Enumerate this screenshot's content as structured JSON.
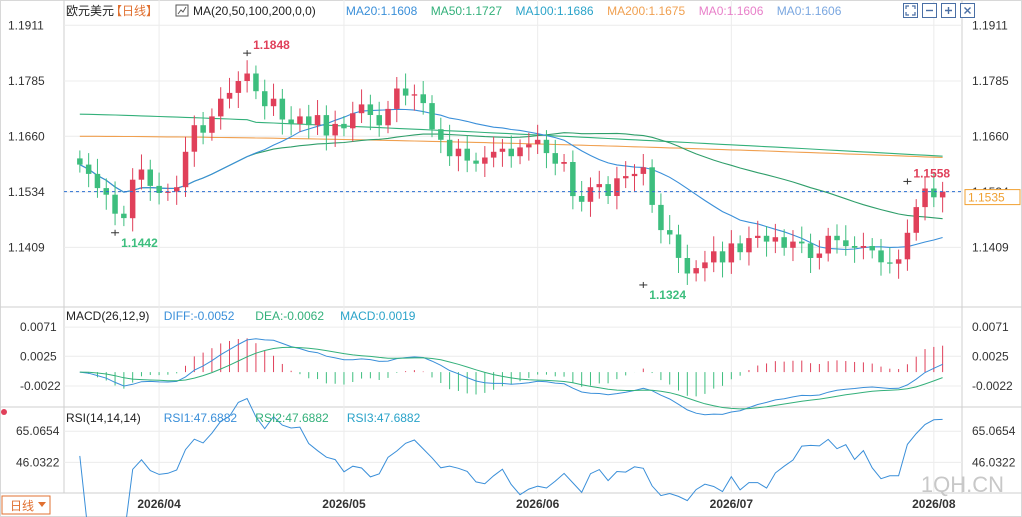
{
  "title": "欧元美元",
  "period": "【日线】",
  "ma_header": {
    "label": "MA(20,50,100,200,0,0)",
    "items": [
      {
        "text": "MA20:1.1608",
        "color": "#3a8fd9"
      },
      {
        "text": "MA50:1.1727",
        "color": "#33b07a"
      },
      {
        "text": "MA100:1.1686",
        "color": "#2aa3c9"
      },
      {
        "text": "MA200:1.1675",
        "color": "#f0a050"
      },
      {
        "text": "MA0:1.1606",
        "color": "#e87fc9"
      },
      {
        "text": "MA0:1.1606",
        "color": "#7aa7e0"
      }
    ]
  },
  "macd_header": {
    "label": "MACD(26,12,9)",
    "items": [
      {
        "text": "DIFF:-0.0052",
        "color": "#3a8fd9"
      },
      {
        "text": "DEA:-0.0062",
        "color": "#33b07a"
      },
      {
        "text": "MACD:0.0019",
        "color": "#2aa3c9"
      }
    ]
  },
  "rsi_header": {
    "label": "RSI(14,14,14)",
    "items": [
      {
        "text": "RSI1:47.6882",
        "color": "#3a8fd9"
      },
      {
        "text": "RSI2:47.6882",
        "color": "#33b07a"
      },
      {
        "text": "RSI3:47.6882",
        "color": "#2aa3c9"
      }
    ]
  },
  "period_button": "日线",
  "watermark": "1QH.CN",
  "colors": {
    "up": "#e0405a",
    "down": "#3dbe7e",
    "grid": "#ececec",
    "axis_text": "#333333",
    "last_price": "#f0a030"
  },
  "chart_data": {
    "type": "candlestick",
    "price_ticks": [
      "1.1911",
      "1.1785",
      "1.1660",
      "1.1534",
      "1.1409"
    ],
    "macd_ticks": [
      "0.0071",
      "0.0025",
      "-0.0022"
    ],
    "rsi_ticks": [
      "65.0654",
      "46.0322"
    ],
    "x_labels": [
      {
        "label": "2026/04",
        "index": 9
      },
      {
        "label": "2026/05",
        "index": 30
      },
      {
        "label": "2026/06",
        "index": 52
      },
      {
        "label": "2026/07",
        "index": 74
      },
      {
        "label": "2026/08",
        "index": 97
      }
    ],
    "annotations": [
      {
        "text": "1.1848",
        "type": "high",
        "index": 19,
        "price": 1.1848,
        "color": "#e0405a"
      },
      {
        "text": "1.1442",
        "type": "low",
        "index": 4,
        "price": 1.1442,
        "color": "#3dbe7e"
      },
      {
        "text": "1.1324",
        "type": "low",
        "index": 64,
        "price": 1.1324,
        "color": "#3dbe7e"
      },
      {
        "text": "1.1558",
        "type": "high",
        "index": 94,
        "price": 1.1558,
        "color": "#e0405a"
      }
    ],
    "last_price": "1.1535",
    "closes": [
      1.1596,
      1.1575,
      1.1543,
      1.1528,
      1.1485,
      1.1475,
      1.1562,
      1.1585,
      1.1548,
      1.1532,
      1.1535,
      1.1545,
      1.1625,
      1.1685,
      1.1668,
      1.1705,
      1.1745,
      1.1758,
      1.1785,
      1.1802,
      1.1762,
      1.1728,
      1.1745,
      1.1698,
      1.1688,
      1.1705,
      1.1685,
      1.1708,
      1.1662,
      1.1688,
      1.1678,
      1.1712,
      1.1732,
      1.1708,
      1.1685,
      1.1722,
      1.1768,
      1.1752,
      1.1755,
      1.1735,
      1.1676,
      1.1652,
      1.1615,
      1.1632,
      1.1605,
      1.1598,
      1.1612,
      1.1625,
      1.1632,
      1.1615,
      1.1635,
      1.1642,
      1.1652,
      1.1622,
      1.1598,
      1.1602,
      1.1525,
      1.1512,
      1.1545,
      1.1552,
      1.1525,
      1.1565,
      1.157,
      1.1575,
      1.159,
      1.1505,
      1.1448,
      1.1438,
      1.1385,
      1.135,
      1.1362,
      1.1375,
      1.14,
      1.1375,
      1.1418,
      1.1398,
      1.143,
      1.1435,
      1.1422,
      1.1432,
      1.1408,
      1.1422,
      1.1418,
      1.1385,
      1.1395,
      1.1435,
      1.1425,
      1.1412,
      1.1408,
      1.1412,
      1.1402,
      1.1375,
      1.1372,
      1.1382,
      1.1442,
      1.15,
      1.1542,
      1.1522,
      1.1535
    ],
    "opens": [
      1.161,
      1.1596,
      1.1575,
      1.1543,
      1.1528,
      1.1485,
      1.1475,
      1.1562,
      1.1585,
      1.1548,
      1.1532,
      1.1535,
      1.1545,
      1.1625,
      1.1685,
      1.1668,
      1.1705,
      1.1745,
      1.1758,
      1.1785,
      1.1802,
      1.1762,
      1.1728,
      1.1745,
      1.1698,
      1.1688,
      1.1705,
      1.1685,
      1.1708,
      1.1662,
      1.1688,
      1.1678,
      1.1712,
      1.1732,
      1.1708,
      1.1685,
      1.1722,
      1.1768,
      1.1752,
      1.1755,
      1.1735,
      1.1676,
      1.1652,
      1.1615,
      1.1632,
      1.1605,
      1.1598,
      1.1612,
      1.1625,
      1.1632,
      1.1615,
      1.1635,
      1.1642,
      1.1652,
      1.1622,
      1.1598,
      1.1602,
      1.1525,
      1.1512,
      1.1545,
      1.1552,
      1.1525,
      1.1565,
      1.157,
      1.1575,
      1.159,
      1.1505,
      1.1448,
      1.1438,
      1.1385,
      1.135,
      1.1362,
      1.1375,
      1.14,
      1.1375,
      1.1418,
      1.1398,
      1.143,
      1.1435,
      1.1422,
      1.1432,
      1.1408,
      1.1422,
      1.1418,
      1.1385,
      1.1395,
      1.1435,
      1.1425,
      1.1412,
      1.1408,
      1.1412,
      1.1402,
      1.1375,
      1.1372,
      1.1382,
      1.1442,
      1.15,
      1.1542,
      1.1522
    ]
  }
}
